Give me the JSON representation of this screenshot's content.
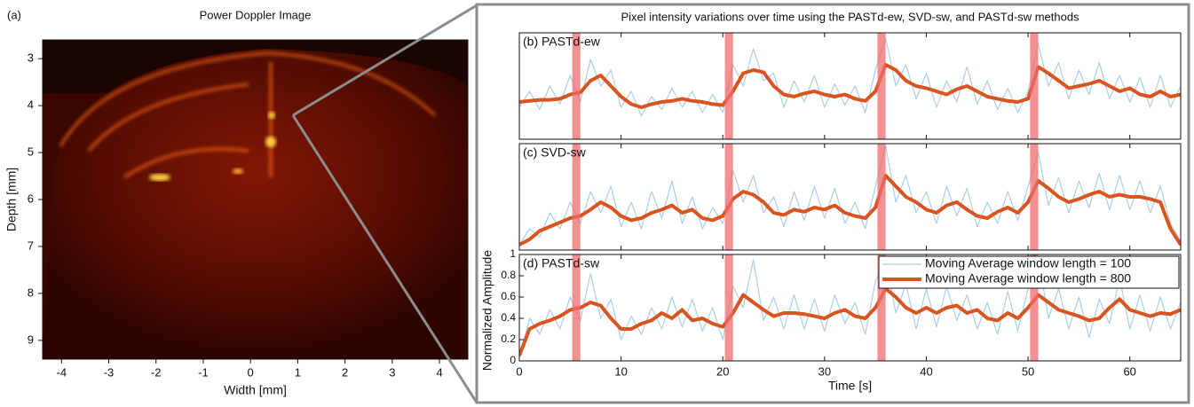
{
  "chart_data": [
    {
      "type": "image",
      "panel_label": "(a)",
      "title": "Power Doppler Image",
      "xlabel": "Width [mm]",
      "ylabel": "Depth [mm]",
      "xlim": [
        -4.4,
        4.6
      ],
      "xticks": [
        -4,
        -3,
        -2,
        -1,
        0,
        1,
        2,
        3,
        4
      ],
      "ylim": [
        2.6,
        9.4
      ],
      "yticks": [
        3,
        4,
        5,
        6,
        7,
        8,
        9
      ],
      "y_inverted": true
    },
    {
      "type": "line",
      "title": "Pixel intensity variations over time using the PASTd-ew, SVD-sw, and PASTd-sw methods",
      "panel_label": "(b) PASTd-ew",
      "xlim": [
        0,
        65
      ],
      "xticks": [
        0,
        10,
        20,
        30,
        40,
        50,
        60
      ],
      "tick_labels": false,
      "ylim": [
        0,
        1
      ],
      "highlight_spans": [
        [
          5.2,
          6
        ],
        [
          20.2,
          21
        ],
        [
          35.2,
          36
        ],
        [
          50.2,
          51
        ]
      ],
      "highlight_color": "#ee6b6e",
      "x": [
        0,
        1,
        2,
        3,
        4,
        5,
        6,
        7,
        8,
        9,
        10,
        11,
        12,
        13,
        14,
        15,
        16,
        17,
        18,
        19,
        20,
        21,
        22,
        23,
        24,
        25,
        26,
        27,
        28,
        29,
        30,
        31,
        32,
        33,
        34,
        35,
        36,
        37,
        38,
        39,
        40,
        41,
        42,
        43,
        44,
        45,
        46,
        47,
        48,
        49,
        50,
        51,
        52,
        53,
        54,
        55,
        56,
        57,
        58,
        59,
        60,
        61,
        62,
        63,
        64,
        65
      ],
      "series": [
        {
          "name": "Moving Average window length = 100",
          "color": "#a9cfe8",
          "width": 1.2,
          "values": [
            0.3,
            0.45,
            0.28,
            0.5,
            0.33,
            0.6,
            0.35,
            0.75,
            0.5,
            0.65,
            0.3,
            0.45,
            0.22,
            0.4,
            0.28,
            0.48,
            0.3,
            0.45,
            0.25,
            0.42,
            0.25,
            0.7,
            0.5,
            0.85,
            0.55,
            0.62,
            0.3,
            0.55,
            0.35,
            0.6,
            0.3,
            0.52,
            0.32,
            0.5,
            0.25,
            0.65,
            0.95,
            0.5,
            0.7,
            0.38,
            0.62,
            0.3,
            0.55,
            0.35,
            0.68,
            0.33,
            0.55,
            0.28,
            0.48,
            0.25,
            0.45,
            0.9,
            0.5,
            0.72,
            0.38,
            0.65,
            0.42,
            0.72,
            0.38,
            0.6,
            0.35,
            0.58,
            0.3,
            0.6,
            0.3,
            0.5
          ]
        },
        {
          "name": "Moving Average window length = 800",
          "color": "#d9541e",
          "width": 4,
          "values": [
            0.35,
            0.36,
            0.37,
            0.37,
            0.38,
            0.42,
            0.44,
            0.55,
            0.6,
            0.5,
            0.4,
            0.33,
            0.3,
            0.33,
            0.35,
            0.36,
            0.38,
            0.36,
            0.35,
            0.33,
            0.32,
            0.45,
            0.62,
            0.65,
            0.63,
            0.5,
            0.42,
            0.4,
            0.43,
            0.45,
            0.42,
            0.4,
            0.42,
            0.38,
            0.36,
            0.45,
            0.7,
            0.65,
            0.55,
            0.5,
            0.48,
            0.45,
            0.42,
            0.47,
            0.5,
            0.45,
            0.4,
            0.38,
            0.36,
            0.35,
            0.38,
            0.68,
            0.62,
            0.55,
            0.48,
            0.5,
            0.52,
            0.55,
            0.5,
            0.45,
            0.48,
            0.42,
            0.4,
            0.45,
            0.4,
            0.42
          ]
        }
      ]
    },
    {
      "type": "line",
      "panel_label": "(c) SVD-sw",
      "xlim": [
        0,
        65
      ],
      "xticks": [
        0,
        10,
        20,
        30,
        40,
        50,
        60
      ],
      "tick_labels": false,
      "ylim": [
        0,
        1
      ],
      "highlight_spans": [
        [
          5.2,
          6
        ],
        [
          20.2,
          21
        ],
        [
          35.2,
          36
        ],
        [
          50.2,
          51
        ]
      ],
      "highlight_color": "#ee6b6e",
      "x": [
        0,
        1,
        2,
        3,
        4,
        5,
        6,
        7,
        8,
        9,
        10,
        11,
        12,
        13,
        14,
        15,
        16,
        17,
        18,
        19,
        20,
        21,
        22,
        23,
        24,
        25,
        26,
        27,
        28,
        29,
        30,
        31,
        32,
        33,
        34,
        35,
        36,
        37,
        38,
        39,
        40,
        41,
        42,
        43,
        44,
        45,
        46,
        47,
        48,
        49,
        50,
        51,
        52,
        53,
        54,
        55,
        56,
        57,
        58,
        59,
        60,
        61,
        62,
        63,
        64,
        65
      ],
      "series": [
        {
          "name": "Moving Average window length = 100",
          "color": "#a9cfe8",
          "width": 1.2,
          "values": [
            0.05,
            0.2,
            0.12,
            0.35,
            0.2,
            0.45,
            0.25,
            0.55,
            0.35,
            0.6,
            0.22,
            0.45,
            0.2,
            0.55,
            0.3,
            0.65,
            0.25,
            0.5,
            0.2,
            0.4,
            0.25,
            0.75,
            0.45,
            0.7,
            0.35,
            0.5,
            0.22,
            0.55,
            0.28,
            0.6,
            0.3,
            0.58,
            0.25,
            0.45,
            0.2,
            0.6,
            0.98,
            0.45,
            0.7,
            0.35,
            0.55,
            0.25,
            0.6,
            0.32,
            0.58,
            0.22,
            0.45,
            0.25,
            0.55,
            0.28,
            0.6,
            0.92,
            0.42,
            0.68,
            0.35,
            0.65,
            0.4,
            0.72,
            0.38,
            0.7,
            0.38,
            0.65,
            0.35,
            0.6,
            0.25,
            0.08
          ]
        },
        {
          "name": "Moving Average window length = 800",
          "color": "#d9541e",
          "width": 4,
          "values": [
            0.05,
            0.1,
            0.18,
            0.22,
            0.26,
            0.3,
            0.32,
            0.38,
            0.45,
            0.4,
            0.32,
            0.28,
            0.3,
            0.35,
            0.38,
            0.42,
            0.35,
            0.38,
            0.3,
            0.28,
            0.32,
            0.48,
            0.55,
            0.52,
            0.45,
            0.35,
            0.33,
            0.38,
            0.36,
            0.4,
            0.38,
            0.42,
            0.35,
            0.32,
            0.3,
            0.4,
            0.7,
            0.6,
            0.5,
            0.45,
            0.38,
            0.35,
            0.42,
            0.45,
            0.38,
            0.32,
            0.3,
            0.36,
            0.4,
            0.35,
            0.45,
            0.65,
            0.58,
            0.5,
            0.45,
            0.48,
            0.52,
            0.55,
            0.5,
            0.52,
            0.5,
            0.5,
            0.48,
            0.45,
            0.2,
            0.05
          ]
        }
      ]
    },
    {
      "type": "line",
      "panel_label": "(d) PASTd-sw",
      "xlabel": "Time [s]",
      "ylabel": "Normalized Amplitude",
      "xlim": [
        0,
        65
      ],
      "xticks": [
        0,
        10,
        20,
        30,
        40,
        50,
        60
      ],
      "tick_labels": true,
      "ylim": [
        0,
        1
      ],
      "yticks": [
        0,
        0.2,
        0.4,
        0.6,
        0.8,
        1
      ],
      "legend": "upper right",
      "highlight_spans": [
        [
          5.2,
          6
        ],
        [
          20.2,
          21
        ],
        [
          35.2,
          36
        ],
        [
          50.2,
          51
        ]
      ],
      "highlight_color": "#ee6b6e",
      "x": [
        0,
        1,
        2,
        3,
        4,
        5,
        6,
        7,
        8,
        9,
        10,
        11,
        12,
        13,
        14,
        15,
        16,
        17,
        18,
        19,
        20,
        21,
        22,
        23,
        24,
        25,
        26,
        27,
        28,
        29,
        30,
        31,
        32,
        33,
        34,
        35,
        36,
        37,
        38,
        39,
        40,
        41,
        42,
        43,
        44,
        45,
        46,
        47,
        48,
        49,
        50,
        51,
        52,
        53,
        54,
        55,
        56,
        57,
        58,
        59,
        60,
        61,
        62,
        63,
        64,
        65
      ],
      "series": [
        {
          "name": "Moving Average window length = 100",
          "color": "#a9cfe8",
          "width": 1.2,
          "values": [
            0.02,
            0.4,
            0.25,
            0.48,
            0.3,
            0.6,
            0.38,
            0.82,
            0.4,
            0.58,
            0.2,
            0.42,
            0.25,
            0.5,
            0.3,
            0.6,
            0.32,
            0.58,
            0.28,
            0.5,
            0.2,
            0.7,
            0.5,
            0.95,
            0.38,
            0.6,
            0.3,
            0.62,
            0.3,
            0.58,
            0.28,
            0.62,
            0.35,
            0.55,
            0.25,
            0.75,
            0.95,
            0.45,
            0.72,
            0.3,
            0.68,
            0.32,
            0.7,
            0.38,
            0.62,
            0.3,
            0.55,
            0.25,
            0.65,
            0.28,
            0.68,
            0.98,
            0.4,
            0.68,
            0.3,
            0.6,
            0.22,
            0.58,
            0.35,
            0.78,
            0.3,
            0.62,
            0.28,
            0.6,
            0.3,
            0.55
          ]
        },
        {
          "name": "Moving Average window length = 800",
          "color": "#d9541e",
          "width": 4,
          "values": [
            0.05,
            0.3,
            0.35,
            0.38,
            0.42,
            0.48,
            0.5,
            0.55,
            0.52,
            0.4,
            0.3,
            0.3,
            0.35,
            0.38,
            0.45,
            0.4,
            0.48,
            0.38,
            0.4,
            0.35,
            0.32,
            0.45,
            0.62,
            0.55,
            0.48,
            0.42,
            0.45,
            0.45,
            0.44,
            0.42,
            0.4,
            0.45,
            0.48,
            0.42,
            0.4,
            0.5,
            0.68,
            0.6,
            0.5,
            0.45,
            0.5,
            0.45,
            0.5,
            0.52,
            0.45,
            0.48,
            0.4,
            0.38,
            0.45,
            0.4,
            0.5,
            0.62,
            0.55,
            0.48,
            0.45,
            0.42,
            0.38,
            0.4,
            0.5,
            0.58,
            0.48,
            0.45,
            0.42,
            0.45,
            0.44,
            0.48
          ]
        }
      ]
    }
  ]
}
